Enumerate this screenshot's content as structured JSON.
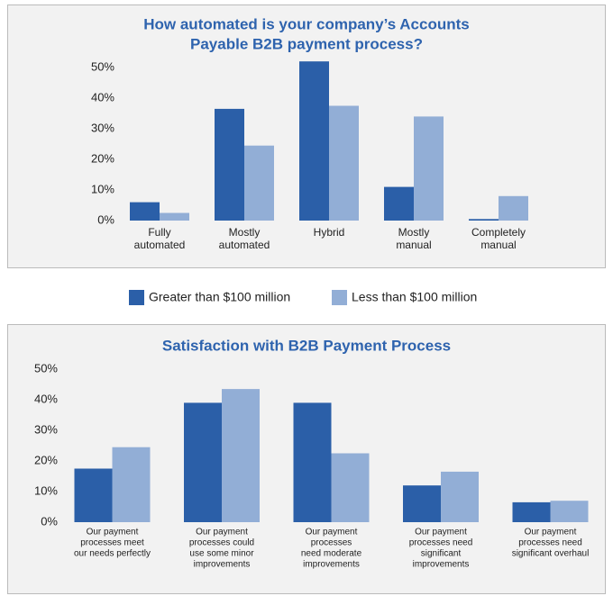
{
  "chart_data": [
    {
      "type": "bar",
      "title": [
        "How automated is your company’s Accounts",
        "Payable B2B payment process?"
      ],
      "categories": [
        [
          "Fully",
          "automated"
        ],
        [
          "Mostly",
          "automated"
        ],
        [
          "Hybrid"
        ],
        [
          "Mostly",
          "manual"
        ],
        [
          "Completely",
          "manual"
        ]
      ],
      "series": [
        {
          "name": "Greater than $100 million",
          "color": "#2b5fa8",
          "values": [
            6,
            36.5,
            52,
            11,
            0.5
          ]
        },
        {
          "name": "Less than $100 million",
          "color": "#92aed6",
          "values": [
            2.5,
            24.5,
            37.5,
            34,
            8
          ]
        }
      ],
      "ylim": [
        0,
        50
      ],
      "yticks": [
        {
          "value": 0,
          "label": "0%"
        },
        {
          "value": 10,
          "label": "10%"
        },
        {
          "value": 20,
          "label": "20%"
        },
        {
          "value": 30,
          "label": "30%"
        },
        {
          "value": 40,
          "label": "40%"
        },
        {
          "value": 50,
          "label": "50%"
        }
      ]
    },
    {
      "type": "bar",
      "title": [
        "Satisfaction with B2B Payment Process"
      ],
      "categories": [
        [
          "Our payment",
          "processes meet",
          "our needs perfectly"
        ],
        [
          "Our payment",
          "processes could",
          "use some minor",
          "improvements"
        ],
        [
          "Our payment",
          "processes",
          "need moderate",
          "improvements"
        ],
        [
          "Our payment",
          "processes need",
          "significant",
          "improvements"
        ],
        [
          "Our payment",
          "processes need",
          "significant overhaul"
        ]
      ],
      "series": [
        {
          "color": "#2b5fa8",
          "values": [
            17.5,
            39,
            39,
            12,
            6.5
          ]
        },
        {
          "color": "#92aed6",
          "values": [
            24.5,
            43.5,
            22.5,
            16.5,
            7
          ]
        }
      ],
      "ylim": [
        0,
        50
      ],
      "yticks": [
        {
          "value": 0,
          "label": "0%"
        },
        {
          "value": 10,
          "label": "10%"
        },
        {
          "value": 20,
          "label": "20%"
        },
        {
          "value": 30,
          "label": "30%"
        },
        {
          "value": 40,
          "label": "40%"
        },
        {
          "value": 50,
          "label": "50%"
        }
      ]
    }
  ]
}
